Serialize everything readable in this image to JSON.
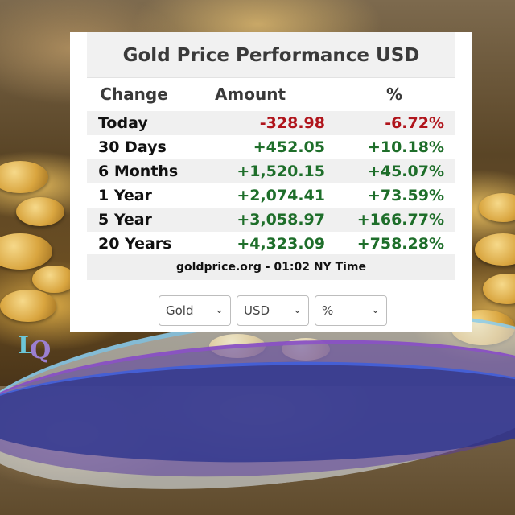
{
  "widget": {
    "title": "Gold Price Performance USD",
    "headers": {
      "change": "Change",
      "amount": "Amount",
      "percent": "%"
    },
    "rows": [
      {
        "period": "Today",
        "amount": "-328.98",
        "percent": "-6.72%",
        "status": "negative"
      },
      {
        "period": "30 Days",
        "amount": "+452.05",
        "percent": "+10.18%",
        "status": "positive"
      },
      {
        "period": "6 Months",
        "amount": "+1,520.15",
        "percent": "+45.07%",
        "status": "positive"
      },
      {
        "period": "1 Year",
        "amount": "+2,074.41",
        "percent": "+73.59%",
        "status": "positive"
      },
      {
        "period": "5 Year",
        "amount": "+3,058.97",
        "percent": "+166.77%",
        "status": "positive"
      },
      {
        "period": "20 Years",
        "amount": "+4,323.09",
        "percent": "+758.28%",
        "status": "positive"
      }
    ],
    "footer": "goldprice.org - 01:02 NY Time",
    "selects": [
      {
        "value": "Gold"
      },
      {
        "value": "USD"
      },
      {
        "value": "%"
      }
    ]
  },
  "colors": {
    "negative": "#b0151c",
    "positive": "#1e6e2a"
  },
  "logo": {
    "text_l": "L",
    "text_q": "Q"
  }
}
